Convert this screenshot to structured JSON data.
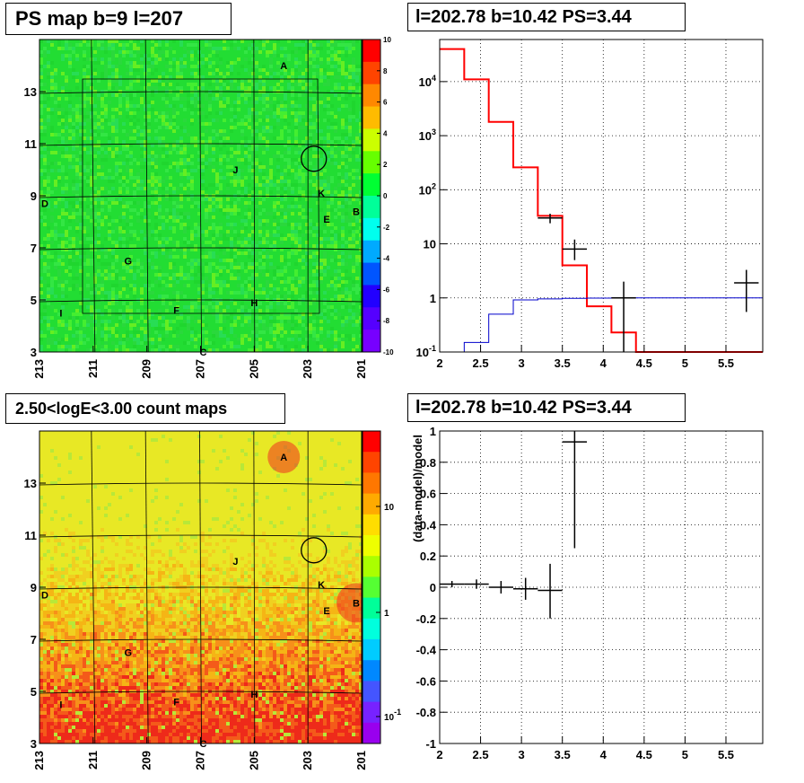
{
  "panels": {
    "map_top": {
      "title": "PS map b=9 l=207"
    },
    "spec_top": {
      "title": "l=202.78 b=10.42 PS=3.44"
    },
    "map_bottom": {
      "title": "2.50<logE<3.00 count maps"
    },
    "resid_bottom": {
      "title": "l=202.78 b=10.42 PS=3.44"
    }
  },
  "chart_data": [
    {
      "type": "heatmap",
      "title": "PS map b=9 l=207",
      "xlabel": "",
      "ylabel": "",
      "x_ticks": [
        "213",
        "211",
        "209",
        "207",
        "205",
        "203",
        "201"
      ],
      "y_ticks": [
        "13",
        "11",
        "9",
        "7",
        "5",
        "3"
      ],
      "xlim": [
        213,
        201
      ],
      "ylim": [
        3,
        15
      ],
      "colorbar": {
        "range": [
          -10,
          10
        ],
        "ticks": [
          "10",
          "8",
          "6",
          "4",
          "2",
          "0",
          "-2",
          "-4",
          "-6",
          "-8",
          "-10"
        ]
      },
      "dominant_color": "#22dd33",
      "sources": [
        {
          "label": "A",
          "l": 203.9,
          "b": 14.0
        },
        {
          "label": "J",
          "l": 205.7,
          "b": 10.0
        },
        {
          "label": "K",
          "l": 202.5,
          "b": 9.1
        },
        {
          "label": "D",
          "l": 212.8,
          "b": 8.7
        },
        {
          "label": "E",
          "l": 202.3,
          "b": 8.1
        },
        {
          "label": "B",
          "l": 201.2,
          "b": 8.4
        },
        {
          "label": "G",
          "l": 209.7,
          "b": 6.5
        },
        {
          "label": "H",
          "l": 205.0,
          "b": 4.9
        },
        {
          "label": "F",
          "l": 207.9,
          "b": 4.6
        },
        {
          "label": "I",
          "l": 212.2,
          "b": 4.5
        },
        {
          "label": "C",
          "l": 206.9,
          "b": 3.0
        }
      ],
      "marker_circle": {
        "l": 202.78,
        "b": 10.42
      },
      "grid": true
    },
    {
      "type": "line",
      "title": "l=202.78 b=10.42 PS=3.44",
      "xlabel": "",
      "ylabel": "",
      "log_y": true,
      "xlim": [
        2.0,
        5.95
      ],
      "ylim": [
        0.1,
        60000
      ],
      "x_ticks": [
        "2",
        "2.5",
        "3",
        "3.5",
        "4",
        "4.5",
        "5",
        "5.5"
      ],
      "y_ticks": [
        "10^4",
        "10^3",
        "10^2",
        "10",
        "1",
        "10^-1"
      ],
      "grid": true,
      "series": [
        {
          "color": "#ff0000",
          "style": "histogram",
          "edges": [
            2.0,
            2.3,
            2.6,
            2.9,
            3.2,
            3.5,
            3.8,
            4.1,
            4.4,
            5.95
          ],
          "values": [
            40000,
            11000,
            1800,
            260,
            33,
            4,
            0.7,
            0.23,
            0.1
          ]
        },
        {
          "color": "#0000cc",
          "style": "histogram",
          "edges": [
            2.0,
            2.3,
            2.6,
            2.9,
            3.2,
            3.5,
            3.8,
            4.1,
            4.4,
            5.95
          ],
          "values": [
            0.1,
            0.15,
            0.5,
            0.92,
            0.96,
            0.98,
            0.99,
            1.0,
            1.0
          ]
        },
        {
          "color": "#000000",
          "style": "errorbars",
          "points": [
            {
              "x": 3.35,
              "y": 30,
              "xerr": 0.15,
              "ylo": 24,
              "yhi": 36
            },
            {
              "x": 3.65,
              "y": 8,
              "xerr": 0.15,
              "ylo": 5,
              "yhi": 12
            },
            {
              "x": 4.25,
              "y": 1.0,
              "xerr": 0.15,
              "ylo": 0.1,
              "yhi": 2.0
            },
            {
              "x": 5.75,
              "y": 1.9,
              "xerr": 0.15,
              "ylo": 0.55,
              "yhi": 3.3
            }
          ]
        }
      ]
    },
    {
      "type": "heatmap",
      "title": "2.50<logE<3.00 count maps",
      "xlabel": "",
      "ylabel": "",
      "x_ticks": [
        "213",
        "211",
        "209",
        "207",
        "205",
        "203",
        "201"
      ],
      "y_ticks": [
        "13",
        "11",
        "9",
        "7",
        "5",
        "3"
      ],
      "xlim": [
        213,
        201
      ],
      "ylim": [
        3,
        15
      ],
      "colorbar": {
        "log": true,
        "ticks": [
          "10",
          "1",
          "10^-1"
        ]
      },
      "dominant_color": "#e0e020",
      "sources": [
        {
          "label": "A",
          "l": 203.9,
          "b": 14.0
        },
        {
          "label": "J",
          "l": 205.7,
          "b": 10.0
        },
        {
          "label": "K",
          "l": 202.5,
          "b": 9.1
        },
        {
          "label": "D",
          "l": 212.8,
          "b": 8.7
        },
        {
          "label": "E",
          "l": 202.3,
          "b": 8.1
        },
        {
          "label": "B",
          "l": 201.2,
          "b": 8.4
        },
        {
          "label": "G",
          "l": 209.7,
          "b": 6.5
        },
        {
          "label": "H",
          "l": 205.0,
          "b": 4.9
        },
        {
          "label": "F",
          "l": 207.9,
          "b": 4.6
        },
        {
          "label": "I",
          "l": 212.2,
          "b": 4.5
        },
        {
          "label": "C",
          "l": 206.9,
          "b": 3.0
        }
      ],
      "marker_circle": {
        "l": 202.78,
        "b": 10.42
      },
      "grid": true
    },
    {
      "type": "scatter",
      "title": "l=202.78 b=10.42 PS=3.44",
      "xlabel": "",
      "ylabel": "(data-model)/model",
      "xlim": [
        2.0,
        5.95
      ],
      "ylim": [
        -1.0,
        1.0
      ],
      "x_ticks": [
        "2",
        "2.5",
        "3",
        "3.5",
        "4",
        "4.5",
        "5",
        "5.5"
      ],
      "y_ticks": [
        "1",
        "0.8",
        "0.6",
        "0.4",
        "0.2",
        "0",
        "-0.2",
        "-0.4",
        "-0.6",
        "-0.8",
        "-1"
      ],
      "grid": true,
      "series": [
        {
          "color": "#000000",
          "style": "errorbars",
          "points": [
            {
              "x": 2.15,
              "y": 0.02,
              "xerr": 0.15,
              "ylo": 0.0,
              "yhi": 0.04
            },
            {
              "x": 2.45,
              "y": 0.02,
              "xerr": 0.15,
              "ylo": -0.01,
              "yhi": 0.05
            },
            {
              "x": 2.75,
              "y": 0.0,
              "xerr": 0.15,
              "ylo": -0.04,
              "yhi": 0.04
            },
            {
              "x": 3.05,
              "y": -0.01,
              "xerr": 0.15,
              "ylo": -0.08,
              "yhi": 0.06
            },
            {
              "x": 3.35,
              "y": -0.02,
              "xerr": 0.15,
              "ylo": -0.2,
              "yhi": 0.15
            },
            {
              "x": 3.65,
              "y": 0.93,
              "xerr": 0.15,
              "ylo": 0.25,
              "yhi": 1.0
            }
          ]
        }
      ]
    }
  ]
}
